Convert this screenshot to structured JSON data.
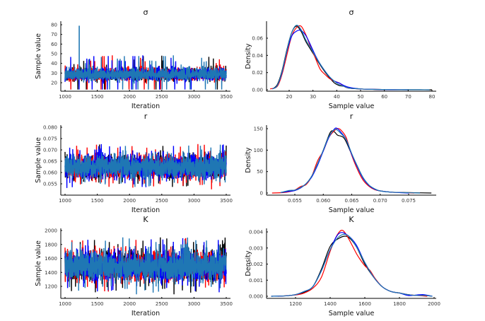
{
  "colors": {
    "chain1": "#000000",
    "chain2": "#ff0000",
    "chain3": "#0000ff",
    "chain4": "#1f77b4"
  },
  "chart_data": [
    {
      "type": "line",
      "id": "sigma-trace",
      "title": "σ",
      "xlabel": "Iteration",
      "ylabel": "Sample value",
      "xlim": [
        1000,
        3500
      ],
      "ylim": [
        12,
        80
      ],
      "xticks": [
        1000,
        1500,
        2000,
        2500,
        3000,
        3500
      ],
      "yticks": [
        20,
        30,
        40,
        50,
        60,
        70,
        80
      ],
      "xtick_labels": [
        "1000",
        "1500",
        "2000",
        "2500",
        "3000",
        "3500"
      ],
      "ytick_labels": [
        "20",
        "30",
        "40",
        "50",
        "60",
        "70",
        "80"
      ],
      "chains": 4,
      "series_summary": {
        "center": 26,
        "spread": 6,
        "min": 13,
        "max": 79
      },
      "grid": false
    },
    {
      "type": "line",
      "id": "sigma-density",
      "title": "σ",
      "xlabel": "Sample value",
      "ylabel": "Density",
      "xlim": [
        12,
        80
      ],
      "ylim": [
        0,
        0.077
      ],
      "xticks": [
        20,
        30,
        40,
        50,
        60,
        70,
        80
      ],
      "yticks": [
        0.0,
        0.02,
        0.04,
        0.06
      ],
      "xtick_labels": [
        "20",
        "30",
        "40",
        "50",
        "60",
        "70",
        "80"
      ],
      "ytick_labels": [
        "0.00",
        "0.02",
        "0.04",
        "0.06"
      ],
      "series": [
        {
          "name": "chain1",
          "x": [
            13,
            15,
            17,
            19,
            21,
            23,
            25,
            27,
            29,
            31,
            33,
            35,
            37,
            39,
            41,
            43,
            45,
            50,
            55,
            60,
            65,
            70,
            75,
            80
          ],
          "y": [
            0.001,
            0.006,
            0.022,
            0.046,
            0.066,
            0.074,
            0.068,
            0.056,
            0.047,
            0.038,
            0.029,
            0.021,
            0.014,
            0.008,
            0.005,
            0.004,
            0.002,
            0.001,
            0.0005,
            0.0003,
            0.0002,
            0.0001,
            0.0001,
            0.0
          ]
        },
        {
          "name": "chain2",
          "x": [
            12,
            15,
            17,
            19,
            21,
            23,
            25,
            27,
            29,
            31,
            33,
            35,
            37,
            39,
            41,
            43,
            45,
            50,
            55,
            60,
            65
          ],
          "y": [
            0.001,
            0.004,
            0.018,
            0.04,
            0.062,
            0.072,
            0.074,
            0.064,
            0.05,
            0.037,
            0.024,
            0.018,
            0.013,
            0.01,
            0.008,
            0.004,
            0.002,
            0.001,
            0.0005,
            0.0003,
            0.0001
          ]
        },
        {
          "name": "chain3",
          "x": [
            13,
            15,
            17,
            19,
            21,
            23,
            25,
            27,
            29,
            31,
            33,
            35,
            37,
            39,
            41,
            43,
            45,
            50,
            55,
            60,
            65,
            70
          ],
          "y": [
            0.001,
            0.005,
            0.02,
            0.044,
            0.062,
            0.068,
            0.069,
            0.063,
            0.052,
            0.04,
            0.03,
            0.022,
            0.015,
            0.01,
            0.008,
            0.005,
            0.003,
            0.001,
            0.0005,
            0.0003,
            0.0001,
            0.0
          ]
        },
        {
          "name": "chain4",
          "x": [
            13,
            15,
            17,
            19,
            21,
            23,
            25,
            27,
            29,
            31,
            33,
            35,
            37,
            39,
            41,
            43,
            45,
            50,
            55,
            60,
            65,
            70,
            75,
            79
          ],
          "y": [
            0.001,
            0.005,
            0.021,
            0.045,
            0.066,
            0.075,
            0.07,
            0.058,
            0.049,
            0.039,
            0.03,
            0.022,
            0.015,
            0.01,
            0.006,
            0.004,
            0.002,
            0.001,
            0.0005,
            0.0003,
            0.0002,
            0.0001,
            0.0001,
            0.0
          ]
        }
      ],
      "grid": false
    },
    {
      "type": "line",
      "id": "r-trace",
      "title": "r",
      "xlabel": "Iteration",
      "ylabel": "Sample value",
      "xlim": [
        1000,
        3500
      ],
      "ylim": [
        0.0505,
        0.08
      ],
      "xticks": [
        1000,
        1500,
        2000,
        2500,
        3000,
        3500
      ],
      "yticks": [
        0.055,
        0.06,
        0.065,
        0.07,
        0.075,
        0.08
      ],
      "xtick_labels": [
        "1000",
        "1500",
        "2000",
        "2500",
        "3000",
        "3500"
      ],
      "ytick_labels": [
        "0.055",
        "0.060",
        "0.065",
        "0.070",
        "0.075",
        "0.080"
      ],
      "chains": 4,
      "series_summary": {
        "center": 0.0625,
        "spread": 0.0027,
        "min": 0.051,
        "max": 0.079
      },
      "grid": false
    },
    {
      "type": "line",
      "id": "r-density",
      "title": "r",
      "xlabel": "Sample value",
      "ylabel": "Density",
      "xlim": [
        0.0505,
        0.08
      ],
      "ylim": [
        0,
        155
      ],
      "xticks": [
        0.055,
        0.06,
        0.065,
        0.07,
        0.075
      ],
      "yticks": [
        0,
        50,
        100,
        150
      ],
      "xtick_labels": [
        "0.055",
        "0.060",
        "0.065",
        "0.070",
        "0.075"
      ],
      "ytick_labels": [
        "0",
        "50",
        "100",
        "150"
      ],
      "series": [
        {
          "name": "chain1",
          "x": [
            0.0525,
            0.054,
            0.055,
            0.056,
            0.057,
            0.058,
            0.059,
            0.06,
            0.061,
            0.0615,
            0.062,
            0.0625,
            0.063,
            0.0635,
            0.064,
            0.065,
            0.066,
            0.067,
            0.068,
            0.069,
            0.07,
            0.072,
            0.075,
            0.079
          ],
          "y": [
            1,
            4,
            6,
            12,
            22,
            40,
            68,
            100,
            135,
            145,
            142,
            135,
            133,
            130,
            120,
            90,
            62,
            35,
            18,
            9,
            5,
            2,
            1,
            0
          ]
        },
        {
          "name": "chain2",
          "x": [
            0.051,
            0.053,
            0.054,
            0.055,
            0.056,
            0.057,
            0.058,
            0.059,
            0.06,
            0.061,
            0.062,
            0.0625,
            0.063,
            0.064,
            0.065,
            0.066,
            0.067,
            0.068,
            0.069,
            0.07,
            0.072,
            0.076
          ],
          "y": [
            0,
            1,
            3,
            7,
            15,
            20,
            40,
            75,
            98,
            130,
            146,
            150,
            148,
            130,
            88,
            55,
            30,
            16,
            8,
            5,
            2,
            0
          ]
        },
        {
          "name": "chain3",
          "x": [
            0.0525,
            0.054,
            0.055,
            0.056,
            0.057,
            0.058,
            0.059,
            0.06,
            0.061,
            0.062,
            0.0625,
            0.063,
            0.064,
            0.065,
            0.066,
            0.067,
            0.068,
            0.069,
            0.07,
            0.072,
            0.075
          ],
          "y": [
            1,
            4,
            6,
            12,
            22,
            38,
            65,
            98,
            130,
            150,
            150,
            143,
            125,
            90,
            60,
            34,
            18,
            9,
            5,
            2,
            0
          ]
        },
        {
          "name": "chain4",
          "x": [
            0.0525,
            0.054,
            0.055,
            0.056,
            0.057,
            0.058,
            0.059,
            0.06,
            0.061,
            0.062,
            0.0625,
            0.063,
            0.064,
            0.065,
            0.066,
            0.067,
            0.068,
            0.069,
            0.07,
            0.072,
            0.077
          ],
          "y": [
            1,
            6,
            7,
            13,
            22,
            40,
            68,
            100,
            132,
            148,
            146,
            140,
            125,
            92,
            62,
            36,
            19,
            10,
            5,
            2,
            0
          ]
        }
      ],
      "grid": false
    },
    {
      "type": "line",
      "id": "K-trace",
      "title": "K",
      "xlabel": "Iteration",
      "ylabel": "Sample value",
      "xlim": [
        1000,
        3500
      ],
      "ylim": [
        1040,
        2010
      ],
      "xticks": [
        1000,
        1500,
        2000,
        2500,
        3000,
        3500
      ],
      "yticks": [
        1200,
        1400,
        1600,
        1800,
        2000
      ],
      "xtick_labels": [
        "1000",
        "1500",
        "2000",
        "2500",
        "3000",
        "3500"
      ],
      "ytick_labels": [
        "1200",
        "1400",
        "1600",
        "1800",
        "2000"
      ],
      "chains": 4,
      "series_summary": {
        "center": 1490,
        "spread": 110,
        "min": 1060,
        "max": 1985
      },
      "grid": false
    },
    {
      "type": "line",
      "id": "K-density",
      "title": "K",
      "xlabel": "Sample value",
      "ylabel": "Density",
      "xlim": [
        1040,
        2010
      ],
      "ylim": [
        0,
        0.0042
      ],
      "xticks": [
        1200,
        1400,
        1600,
        1800,
        2000
      ],
      "yticks": [
        0.0,
        0.001,
        0.002,
        0.003,
        0.004
      ],
      "xtick_labels": [
        "1200",
        "1400",
        "1600",
        "1800",
        "2000"
      ],
      "ytick_labels": [
        "0.000",
        "0.001",
        "0.002",
        "0.003",
        "0.004"
      ],
      "series": [
        {
          "name": "chain1",
          "x": [
            1060,
            1150,
            1200,
            1250,
            1300,
            1350,
            1400,
            1450,
            1500,
            1550,
            1600,
            1650,
            1700,
            1750,
            1800,
            1850,
            1900,
            1950,
            1990
          ],
          "y": [
            0.0,
            3e-05,
            0.0001,
            0.00025,
            0.0006,
            0.0017,
            0.0031,
            0.0036,
            0.0037,
            0.0031,
            0.002,
            0.0012,
            0.0006,
            0.0003,
            0.0002,
            0.0001,
            5e-05,
            5e-05,
            0.0
          ]
        },
        {
          "name": "chain2",
          "x": [
            1100,
            1200,
            1250,
            1300,
            1350,
            1400,
            1440,
            1470,
            1500,
            1530,
            1560,
            1600,
            1630,
            1660,
            1700,
            1750,
            1800,
            1850,
            1900,
            1960
          ],
          "y": [
            0.0,
            8e-05,
            0.0002,
            0.0005,
            0.0012,
            0.0028,
            0.0038,
            0.0041,
            0.0037,
            0.0031,
            0.0025,
            0.0019,
            0.0016,
            0.0011,
            0.0006,
            0.0003,
            0.0002,
            0.0001,
            5e-05,
            0.0
          ]
        },
        {
          "name": "chain3",
          "x": [
            1060,
            1150,
            1200,
            1250,
            1300,
            1350,
            1400,
            1450,
            1500,
            1550,
            1600,
            1650,
            1700,
            1750,
            1800,
            1850,
            1900,
            1940,
            1990
          ],
          "y": [
            0.0,
            3e-05,
            0.0001,
            0.0003,
            0.0006,
            0.0016,
            0.0029,
            0.0039,
            0.0038,
            0.0032,
            0.0021,
            0.0012,
            0.0006,
            0.0003,
            0.0002,
            5e-05,
            8e-05,
            0.0001,
            0.0
          ]
        },
        {
          "name": "chain4",
          "x": [
            1060,
            1150,
            1200,
            1250,
            1300,
            1350,
            1400,
            1450,
            1500,
            1550,
            1600,
            1650,
            1700,
            1750,
            1800,
            1850,
            1900,
            1950,
            1990
          ],
          "y": [
            0.0,
            3e-05,
            0.0001,
            0.0003,
            0.0006,
            0.0016,
            0.0029,
            0.0037,
            0.0038,
            0.0031,
            0.0021,
            0.0012,
            0.0006,
            0.0003,
            0.0002,
            0.0001,
            5e-05,
            5e-05,
            0.0
          ]
        }
      ],
      "grid": false
    }
  ]
}
